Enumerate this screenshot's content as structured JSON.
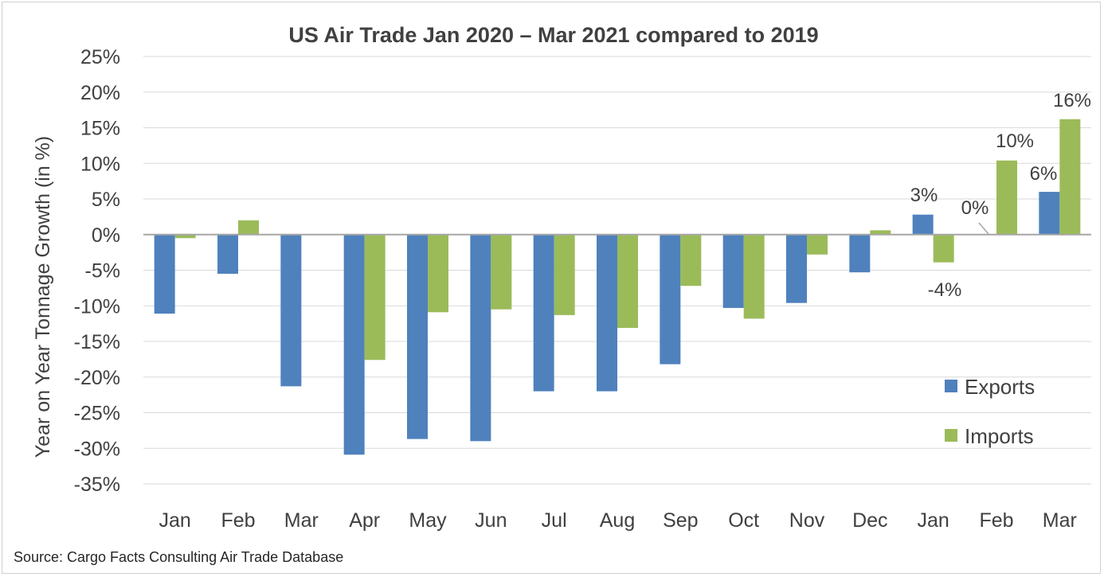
{
  "chart_data": {
    "type": "bar",
    "title": "US Air Trade Jan 2020 – Mar 2021 compared to 2019",
    "ylabel": "Year on Year Tonnage Growth (in %)",
    "xlabel": "",
    "categories": [
      "Jan",
      "Feb",
      "Mar",
      "Apr",
      "May",
      "Jun",
      "Jul",
      "Aug",
      "Sep",
      "Oct",
      "Nov",
      "Dec",
      "Jan",
      "Feb",
      "Mar"
    ],
    "ylim": [
      -35,
      25
    ],
    "yticks": [
      25,
      20,
      15,
      10,
      5,
      0,
      -5,
      -10,
      -15,
      -20,
      -25,
      -30,
      -35
    ],
    "ytick_labels": [
      "25%",
      "20%",
      "15%",
      "10%",
      "5%",
      "0%",
      "-5%",
      "-10%",
      "-15%",
      "-20%",
      "-25%",
      "-30%",
      "-35%"
    ],
    "grid": true,
    "legend_position": "bottom-right",
    "series": [
      {
        "name": "Exports",
        "color": "#4f81bd",
        "values": [
          -11.1,
          -5.5,
          -21.3,
          -30.9,
          -28.7,
          -29.0,
          -22.0,
          -22.0,
          -18.2,
          -10.3,
          -9.6,
          -5.3,
          2.8,
          0.0,
          6.0
        ]
      },
      {
        "name": "Imports",
        "color": "#9bbb59",
        "values": [
          -0.5,
          2.0,
          0.0,
          -17.6,
          -10.9,
          -10.5,
          -11.3,
          -13.1,
          -7.2,
          -11.8,
          -2.8,
          0.6,
          -3.9,
          10.4,
          16.2
        ]
      }
    ],
    "data_labels": [
      {
        "series": 0,
        "index": 12,
        "text": "3%"
      },
      {
        "series": 1,
        "index": 12,
        "text": "-4%"
      },
      {
        "series": 0,
        "index": 13,
        "text": "0%"
      },
      {
        "series": 1,
        "index": 13,
        "text": "10%"
      },
      {
        "series": 0,
        "index": 14,
        "text": "6%"
      },
      {
        "series": 1,
        "index": 14,
        "text": "16%"
      }
    ],
    "source": "Source: Cargo Facts Consulting Air Trade Database"
  }
}
